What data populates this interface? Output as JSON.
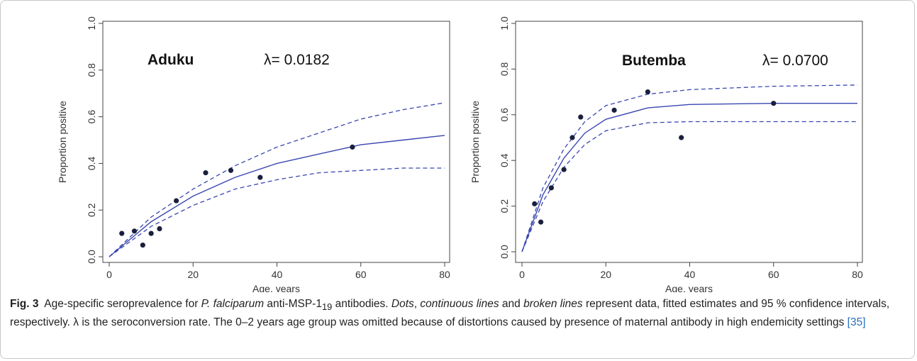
{
  "chart_data": [
    {
      "type": "scatter",
      "title": "Aduku",
      "annotation": "λ= 0.0182",
      "xlabel": "Age, years",
      "ylabel": "Proportion positive",
      "xlim": [
        0,
        80
      ],
      "ylim": [
        0,
        1
      ],
      "xticks": [
        "0",
        "20",
        "40",
        "60",
        "80"
      ],
      "yticks": [
        "0.0",
        "0.2",
        "0.4",
        "0.6",
        "0.8",
        "1.0"
      ],
      "points": {
        "x": [
          3,
          6,
          8,
          10,
          12,
          16,
          23,
          29,
          36,
          58
        ],
        "y": [
          0.1,
          0.11,
          0.05,
          0.1,
          0.12,
          0.24,
          0.36,
          0.37,
          0.34,
          0.47
        ]
      },
      "fit": {
        "x": [
          0,
          10,
          20,
          30,
          40,
          50,
          60,
          70,
          80
        ],
        "y": [
          0.0,
          0.15,
          0.26,
          0.34,
          0.4,
          0.44,
          0.48,
          0.5,
          0.52
        ]
      },
      "ci_upper": {
        "x": [
          0,
          10,
          20,
          30,
          40,
          50,
          60,
          70,
          80
        ],
        "y": [
          0.0,
          0.17,
          0.29,
          0.39,
          0.47,
          0.53,
          0.59,
          0.63,
          0.66
        ]
      },
      "ci_lower": {
        "x": [
          0,
          10,
          20,
          30,
          40,
          50,
          60,
          70,
          80
        ],
        "y": [
          0.0,
          0.13,
          0.22,
          0.29,
          0.33,
          0.36,
          0.37,
          0.38,
          0.38
        ]
      },
      "colors": {
        "fit": "#3a47b0",
        "points": "#1a1f3c",
        "axis": "#444444"
      }
    },
    {
      "type": "scatter",
      "title": "Butemba",
      "annotation": "λ= 0.0700",
      "xlabel": "Age, years",
      "ylabel": "Proportion positive",
      "xlim": [
        0,
        80
      ],
      "ylim": [
        0,
        1
      ],
      "xticks": [
        "0",
        "20",
        "40",
        "60",
        "80"
      ],
      "yticks": [
        "0.0",
        "0.2",
        "0.4",
        "0.6",
        "0.8",
        "1.0"
      ],
      "points": {
        "x": [
          3,
          4.5,
          7,
          10,
          12,
          14,
          22,
          30,
          38,
          60
        ],
        "y": [
          0.21,
          0.13,
          0.28,
          0.36,
          0.5,
          0.59,
          0.62,
          0.7,
          0.5,
          0.65
        ]
      },
      "fit": {
        "x": [
          0,
          5,
          10,
          15,
          20,
          30,
          40,
          60,
          80
        ],
        "y": [
          0.0,
          0.25,
          0.41,
          0.52,
          0.58,
          0.63,
          0.645,
          0.65,
          0.65
        ]
      },
      "ci_upper": {
        "x": [
          0,
          5,
          10,
          15,
          20,
          30,
          40,
          60,
          80
        ],
        "y": [
          0.0,
          0.28,
          0.45,
          0.57,
          0.64,
          0.69,
          0.71,
          0.725,
          0.73
        ]
      },
      "ci_lower": {
        "x": [
          0,
          5,
          10,
          15,
          20,
          30,
          40,
          60,
          80
        ],
        "y": [
          0.0,
          0.22,
          0.37,
          0.47,
          0.53,
          0.565,
          0.57,
          0.57,
          0.57
        ]
      },
      "colors": {
        "fit": "#3a47b0",
        "points": "#1a1f3c",
        "axis": "#444444"
      }
    }
  ],
  "caption": {
    "fig_label": "Fig. 3",
    "text_a": "Age-specific seroprevalence for ",
    "species": "P. falciparum",
    "text_b": " anti-MSP-1",
    "subscript": "19",
    "text_c": " antibodies. ",
    "dots": "Dots",
    "sep1": ", ",
    "continuous": "continuous lines",
    "sep2": " and ",
    "broken": "broken lines",
    "text_d": " represent data, fitted estimates and 95 % confidence intervals, respectively. λ is the seroconversion rate. The 0–2 years age group was omitted because of distortions caused by presence of maternal antibody in high endemicity settings ",
    "ref": "[35]"
  }
}
